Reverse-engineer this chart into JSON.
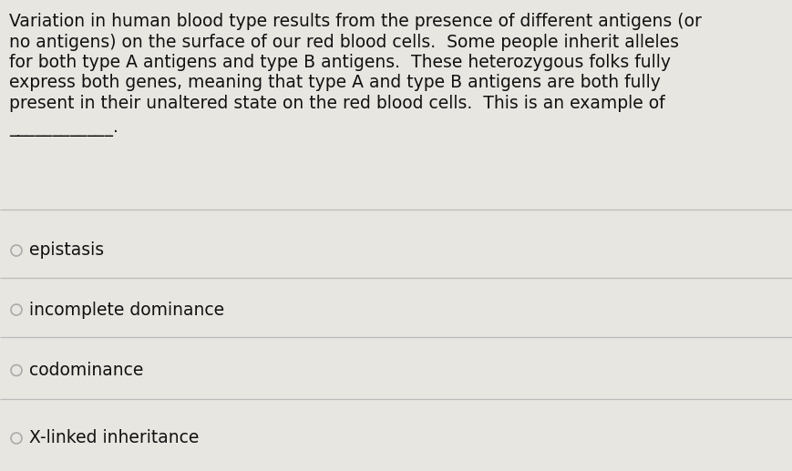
{
  "background_color": "#e8e6e1",
  "question_lines": [
    "Variation in human blood type results from the presence of different antigens (or",
    "no antigens) on the surface of our red blood cells.  Some people inherit alleles",
    "for both type A antigens and type B antigens.  These heterozygous folks fully",
    "express both genes, meaning that type A and type B antigens are both fully",
    "present in their unaltered state on the red blood cells.  This is an example of"
  ],
  "underline_text": "____________.",
  "options": [
    "epistasis",
    "incomplete dominance",
    "codominance",
    "X-linked inheritance"
  ],
  "question_font_size": 13.5,
  "option_font_size": 13.5,
  "text_color": "#111111",
  "divider_color": "#bbbbbb",
  "circle_color": "#aaaaaa",
  "underline_color": "#333333",
  "figure_width": 8.69,
  "figure_height": 5.17,
  "dpi": 100
}
